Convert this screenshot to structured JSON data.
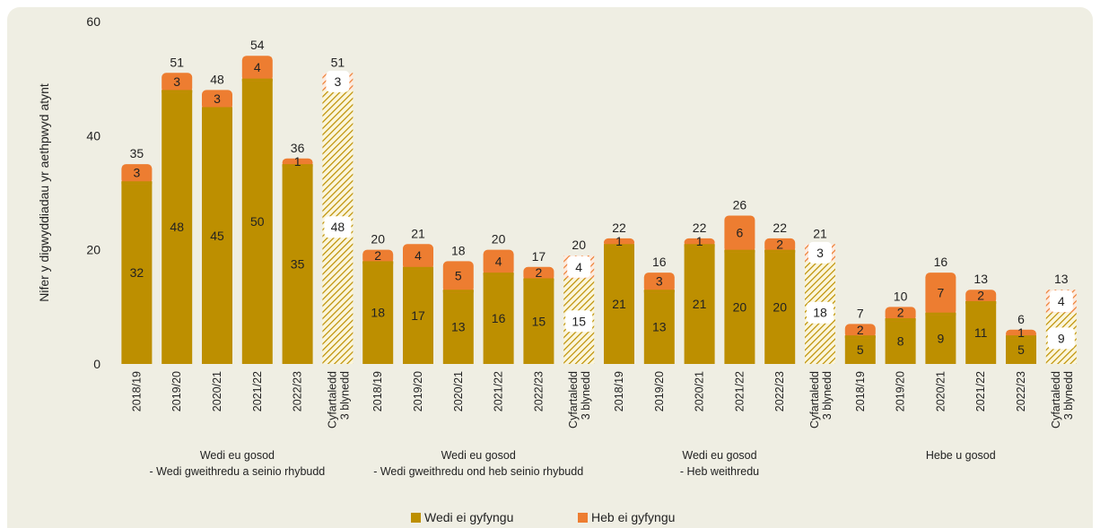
{
  "chart_data": {
    "type": "bar",
    "stacked": true,
    "title": "",
    "ylabel": "Nifer y digwyddiadau yr aethpwyd atynt",
    "ylim": [
      0,
      60
    ],
    "yticks": [
      "0",
      "20",
      "40",
      "60"
    ],
    "grid": false,
    "legend_position": "bottom",
    "series": [
      {
        "name": "Wedi ei gyfyngu",
        "color": "#bd8f00"
      },
      {
        "name": "Heb ei gyfyngu",
        "color": "#ed7d31"
      }
    ],
    "groups": [
      {
        "label_line1": "Wedi eu gosod",
        "label_line2": "- Wedi gweithredu a seinio rhybudd",
        "bars": [
          {
            "category": "2018/19",
            "contained": 32,
            "not_contained": 3,
            "total": 35
          },
          {
            "category": "2019/20",
            "contained": 48,
            "not_contained": 3,
            "total": 51
          },
          {
            "category": "2020/21",
            "contained": 45,
            "not_contained": 3,
            "total": 48
          },
          {
            "category": "2021/22",
            "contained": 50,
            "not_contained": 4,
            "total": 54
          },
          {
            "category": "2022/23",
            "contained": 35,
            "not_contained": 1,
            "total": 36
          },
          {
            "category": "Cyfartaledd|3 blynedd",
            "contained": 48,
            "not_contained": 3,
            "total": 51,
            "average": true
          }
        ]
      },
      {
        "label_line1": "Wedi eu gosod",
        "label_line2": "- Wedi gweithredu ond heb seinio rhybudd",
        "bars": [
          {
            "category": "2018/19",
            "contained": 18,
            "not_contained": 2,
            "total": 20
          },
          {
            "category": "2019/20",
            "contained": 17,
            "not_contained": 4,
            "total": 21
          },
          {
            "category": "2020/21",
            "contained": 13,
            "not_contained": 5,
            "total": 18
          },
          {
            "category": "2021/22",
            "contained": 16,
            "not_contained": 4,
            "total": 20
          },
          {
            "category": "2022/23",
            "contained": 15,
            "not_contained": 2,
            "total": 17
          },
          {
            "category": "Cyfartaledd|3 blynedd",
            "contained": 15,
            "not_contained": 4,
            "total": 20,
            "average": true
          }
        ]
      },
      {
        "label_line1": "Wedi eu gosod",
        "label_line2": "- Heb weithredu",
        "bars": [
          {
            "category": "2018/19",
            "contained": 21,
            "not_contained": 1,
            "total": 22
          },
          {
            "category": "2019/20",
            "contained": 13,
            "not_contained": 3,
            "total": 16
          },
          {
            "category": "2020/21",
            "contained": 21,
            "not_contained": 1,
            "total": 22
          },
          {
            "category": "2021/22",
            "contained": 20,
            "not_contained": 6,
            "total": 26
          },
          {
            "category": "2022/23",
            "contained": 20,
            "not_contained": 2,
            "total": 22
          },
          {
            "category": "Cyfartaledd|3 blynedd",
            "contained": 18,
            "not_contained": 3,
            "total": 21,
            "average": true
          }
        ]
      },
      {
        "label_line1": "Hebe u gosod",
        "label_line2": "",
        "bars": [
          {
            "category": "2018/19",
            "contained": 5,
            "not_contained": 2,
            "total": 7
          },
          {
            "category": "2019/20",
            "contained": 8,
            "not_contained": 2,
            "total": 10
          },
          {
            "category": "2020/21",
            "contained": 9,
            "not_contained": 7,
            "total": 16
          },
          {
            "category": "2021/22",
            "contained": 11,
            "not_contained": 2,
            "total": 13
          },
          {
            "category": "2022/23",
            "contained": 5,
            "not_contained": 1,
            "total": 6
          },
          {
            "category": "Cyfartaledd|3 blynedd",
            "contained": 9,
            "not_contained": 4,
            "total": 13,
            "average": true
          }
        ]
      }
    ]
  }
}
